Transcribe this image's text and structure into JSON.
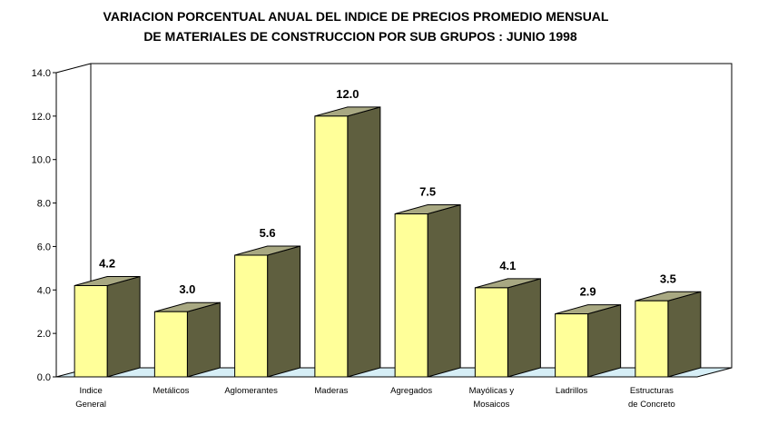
{
  "chart_data": {
    "type": "bar",
    "title_lines": [
      "VARIACION PORCENTUAL ANUAL DEL INDICE DE PRECIOS PROMEDIO MENSUAL",
      "DE MATERIALES DE CONSTRUCCION POR SUB GRUPOS : JUNIO 1998"
    ],
    "categories": [
      [
        "Indice",
        "General"
      ],
      [
        "Metálicos"
      ],
      [
        "Aglomerantes"
      ],
      [
        "Maderas"
      ],
      [
        "Agregados"
      ],
      [
        "Mayólicas y",
        "Mosaicos"
      ],
      [
        "Ladrillos"
      ],
      [
        "Estructuras",
        "de Concreto"
      ]
    ],
    "values": [
      4.2,
      3.0,
      5.6,
      12.0,
      7.5,
      4.1,
      2.9,
      3.5
    ],
    "value_labels": [
      "4.2",
      "3.0",
      "5.6",
      "12.0",
      "7.5",
      "4.1",
      "2.9",
      "3.5"
    ],
    "yticks": [
      "0.0",
      "2.0",
      "4.0",
      "6.0",
      "8.0",
      "10.0",
      "12.0",
      "14.0"
    ],
    "ylim": [
      0,
      14
    ],
    "xlabel": "",
    "ylabel": "",
    "grid": false,
    "legend": "none",
    "style": "3d",
    "colors": {
      "bar_front": "#ffff99",
      "bar_side": "#5f5f3f",
      "bar_top": "#a8a882",
      "floor": "#d6eef6",
      "outline": "#000000"
    }
  }
}
